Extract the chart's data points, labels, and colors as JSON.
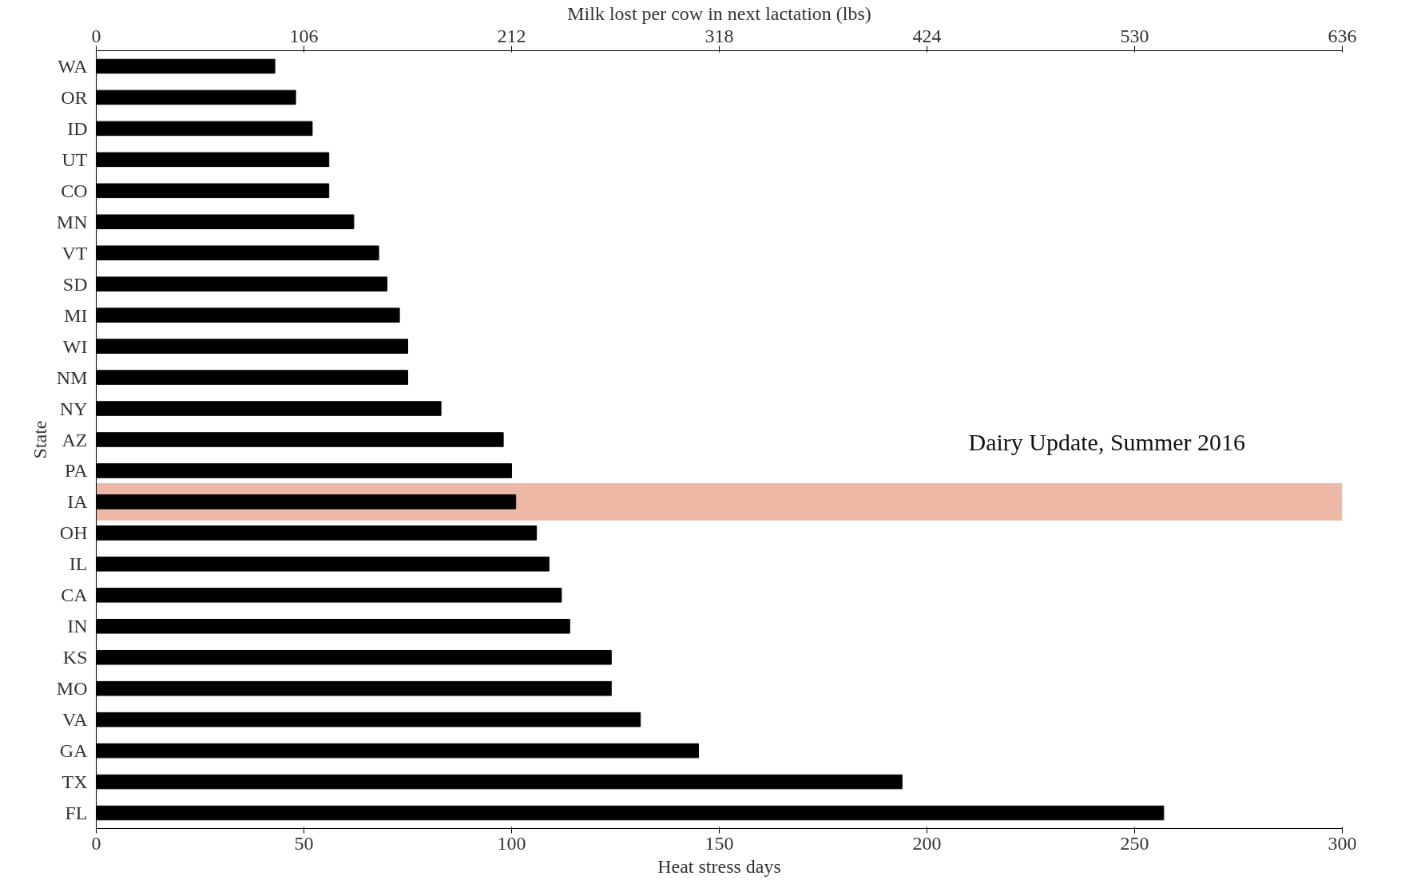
{
  "chart_data": {
    "type": "bar",
    "orientation": "horizontal",
    "xlabel": "Heat stress days",
    "x2label": "Milk lost per cow in next lactation (lbs)",
    "ylabel": "State",
    "categories": [
      "WA",
      "OR",
      "ID",
      "UT",
      "CO",
      "MN",
      "VT",
      "SD",
      "MI",
      "WI",
      "NM",
      "NY",
      "AZ",
      "PA",
      "IA",
      "OH",
      "IL",
      "CA",
      "IN",
      "KS",
      "MO",
      "VA",
      "GA",
      "TX",
      "FL"
    ],
    "values": [
      43,
      48,
      52,
      56,
      56,
      62,
      68,
      70,
      73,
      75,
      75,
      83,
      98,
      100,
      101,
      106,
      109,
      112,
      114,
      124,
      124,
      131,
      145,
      194,
      257
    ],
    "color": "#000000",
    "xlim": [
      0,
      300
    ],
    "xticks": [
      0,
      50,
      100,
      150,
      200,
      250,
      300
    ],
    "x2lim": [
      0,
      636
    ],
    "x2ticks": [
      0,
      106,
      212,
      318,
      424,
      530,
      636
    ],
    "bands": [
      {
        "axis": "y",
        "from": "IA",
        "to": "IA",
        "color": "#e8a08a"
      }
    ],
    "annotations": [
      "Dairy Update, Summer 2016"
    ],
    "grid": false
  }
}
